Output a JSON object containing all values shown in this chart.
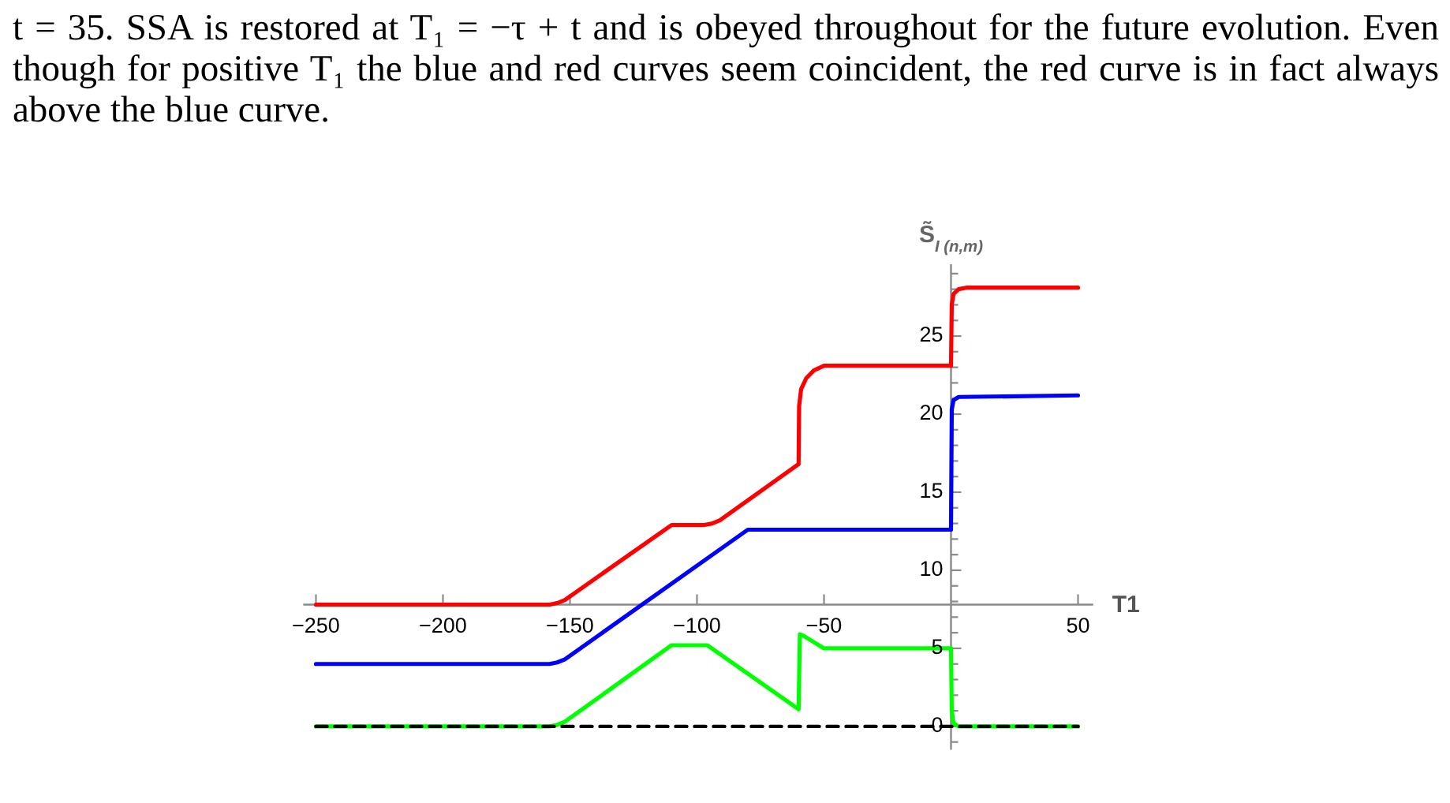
{
  "chart_data": {
    "type": "line",
    "xlabel": "T1",
    "ylabel": "S̃$_{I (n,m)}$",
    "annotations": [
      "t = 35. SSA is restored at T₁ = −τ + t and is obeyed throughout for the future evolution. Even though for positive T₁ the blue and red curves seem coincident, the red curve is in fact always above the blue curve."
    ],
    "xlim": [
      -255,
      56
    ],
    "ylim": [
      -1.5,
      29.6
    ],
    "xticks": [
      -250,
      -200,
      -150,
      -100,
      -50,
      50
    ],
    "yticks": [
      {
        "value": -1,
        "label": null
      },
      0,
      {
        "value": 1,
        "label": null
      },
      {
        "value": 2,
        "label": null
      },
      {
        "value": 3,
        "label": null
      },
      {
        "value": 4,
        "label": null
      },
      5,
      {
        "value": 6,
        "label": null
      },
      {
        "value": 7,
        "label": null
      },
      {
        "value": 8,
        "label": null
      },
      {
        "value": 9,
        "label": null
      },
      10,
      {
        "value": 11,
        "label": null
      },
      {
        "value": 12,
        "label": null
      },
      {
        "value": 13,
        "label": null
      },
      {
        "value": 14,
        "label": null
      },
      15,
      {
        "value": 16,
        "label": null
      },
      {
        "value": 17,
        "label": null
      },
      {
        "value": 18,
        "label": null
      },
      {
        "value": 19,
        "label": null
      },
      20,
      {
        "value": 21,
        "label": null
      },
      {
        "value": 22,
        "label": null
      },
      {
        "value": 23,
        "label": null
      },
      {
        "value": 24,
        "label": null
      },
      25,
      {
        "value": 26,
        "label": null
      },
      {
        "value": 27,
        "label": null
      },
      {
        "value": 28,
        "label": null
      },
      {
        "value": 29,
        "label": null
      }
    ],
    "line_style": "solid",
    "series": [
      {
        "color": "#ff0000",
        "x": [
          -250,
          -158,
          -155,
          -152,
          -110,
          -97,
          -94,
          -91,
          -60,
          -59.8,
          -59,
          -57,
          -54,
          -50,
          0,
          0.3,
          1,
          3,
          6,
          50
        ],
        "values": [
          7.8,
          7.8,
          7.9,
          8.1,
          12.9,
          12.9,
          13.0,
          13.2,
          16.8,
          20.5,
          21.6,
          22.3,
          22.8,
          23.1,
          23.1,
          27.0,
          27.7,
          28.0,
          28.1,
          28.1
        ]
      },
      {
        "color": "#0000ff",
        "x": [
          -250,
          -158,
          -155,
          -152,
          -80,
          0,
          0.3,
          1,
          3,
          50
        ],
        "values": [
          4.0,
          4.0,
          4.1,
          4.3,
          12.6,
          12.6,
          20.3,
          20.9,
          21.1,
          21.2
        ]
      },
      {
        "color": "#00ff00",
        "x": [
          -250,
          -158,
          -155,
          -152,
          -110,
          -96,
          -60,
          -59.5,
          -58,
          -50,
          0,
          0.3,
          1,
          3,
          50
        ],
        "values": [
          0,
          0,
          0.1,
          0.3,
          5.2,
          5.2,
          1.1,
          5.9,
          5.8,
          5.0,
          5.0,
          1.0,
          0.2,
          0,
          0
        ]
      },
      {
        "color": "#000000",
        "line_style": "dashed",
        "x": [
          -250,
          50
        ],
        "values": [
          0,
          0
        ]
      }
    ]
  }
}
